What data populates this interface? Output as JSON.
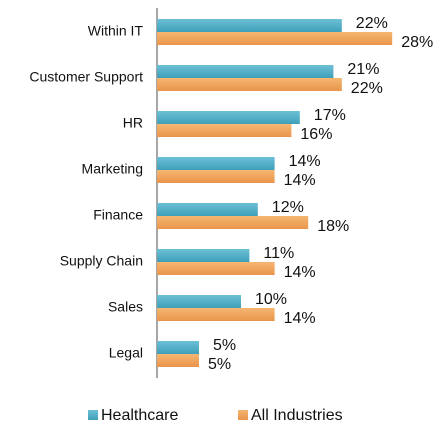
{
  "chart_data": {
    "type": "bar",
    "orientation": "horizontal",
    "categories": [
      "Within IT",
      "Customer Support",
      "HR",
      "Marketing",
      "Finance",
      "Supply Chain",
      "Sales",
      "Legal"
    ],
    "series": [
      {
        "name": "Healthcare",
        "color": "#4bacc6",
        "values": [
          22,
          21,
          17,
          14,
          12,
          11,
          10,
          5
        ],
        "value_labels": [
          "22%",
          "21%",
          "17%",
          "14%",
          "12%",
          "11%",
          "10%",
          "5%"
        ]
      },
      {
        "name": "All Industries",
        "color": "#f0a050",
        "values": [
          28,
          22,
          16,
          14,
          18,
          14,
          14,
          5
        ],
        "value_labels": [
          "28%",
          "22%",
          "16%",
          "14%",
          "18%",
          "14%",
          "14%",
          "5%"
        ]
      }
    ],
    "xlim": [
      0,
      30
    ],
    "legend": "bottom"
  }
}
